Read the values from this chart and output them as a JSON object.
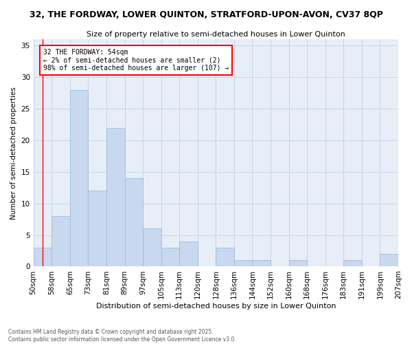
{
  "title": "32, THE FORDWAY, LOWER QUINTON, STRATFORD-UPON-AVON, CV37 8QP",
  "subtitle": "Size of property relative to semi-detached houses in Lower Quinton",
  "xlabel": "Distribution of semi-detached houses by size in Lower Quinton",
  "ylabel": "Number of semi-detached properties",
  "footer_line1": "Contains HM Land Registry data © Crown copyright and database right 2025.",
  "footer_line2": "Contains public sector information licensed under the Open Government Licence v3.0.",
  "annotation_title": "32 THE FORDWAY: 54sqm",
  "annotation_line1": "← 2% of semi-detached houses are smaller (2)",
  "annotation_line2": "98% of semi-detached houses are larger (107) →",
  "bar_values": [
    3,
    8,
    28,
    12,
    22,
    14,
    6,
    3,
    4,
    0,
    3,
    1,
    1,
    0,
    1,
    0,
    0,
    1,
    0,
    2
  ],
  "bar_labels": [
    "50sqm",
    "58sqm",
    "65sqm",
    "73sqm",
    "81sqm",
    "89sqm",
    "97sqm",
    "105sqm",
    "113sqm",
    "120sqm",
    "128sqm",
    "136sqm",
    "144sqm",
    "152sqm",
    "160sqm",
    "168sqm",
    "176sqm",
    "183sqm",
    "191sqm",
    "199sqm",
    "207sqm"
  ],
  "bar_color": "#c8d8ef",
  "bar_edge_color": "#a0bcd8",
  "bar_edge_width": 0.6,
  "vline_color": "red",
  "vline_x_index": 1,
  "ylim": [
    0,
    36
  ],
  "yticks": [
    0,
    5,
    10,
    15,
    20,
    25,
    30,
    35
  ],
  "grid_color": "#c8d4e8",
  "background_color": "#e8eef8",
  "bin_width": 8
}
